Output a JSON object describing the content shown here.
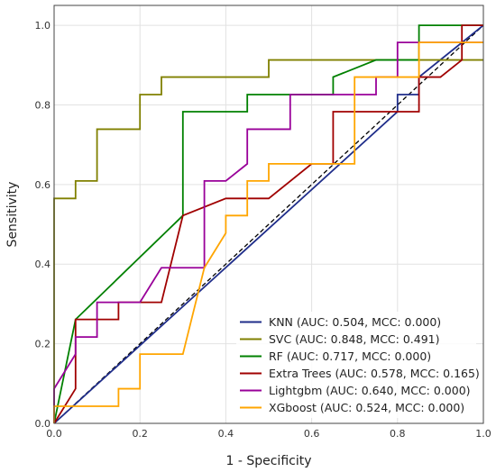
{
  "chart_data": {
    "type": "line",
    "title": "",
    "xlabel": "1 - Specificity",
    "ylabel": "Sensitivity",
    "xlim": [
      0,
      1
    ],
    "ylim": [
      0,
      1.05
    ],
    "xticks": [
      0.0,
      0.2,
      0.4,
      0.6,
      0.8,
      1.0
    ],
    "yticks": [
      0.0,
      0.2,
      0.4,
      0.6,
      0.8,
      1.0
    ],
    "xtick_labels": [
      "0.0",
      "0.2",
      "0.4",
      "0.6",
      "0.8",
      "1.0"
    ],
    "ytick_labels": [
      "0.0",
      "0.2",
      "0.4",
      "0.6",
      "0.8",
      "1.0"
    ],
    "grid": true,
    "legend_position": "bottom-right",
    "diagonal": {
      "style": "dashed",
      "color": "#000000"
    },
    "series": [
      {
        "name": "KNN (AUC: 0.504, MCC: 0.000)",
        "color": "#1f2d8a",
        "x": [
          0.0,
          0.8,
          0.8,
          0.85,
          0.85,
          1.0
        ],
        "y": [
          0.0,
          0.783,
          0.826,
          0.826,
          0.87,
          1.0
        ]
      },
      {
        "name": "SVC (AUC: 0.848, MCC: 0.491)",
        "color": "#808000",
        "x": [
          0.0,
          0.0,
          0.05,
          0.05,
          0.1,
          0.1,
          0.2,
          0.2,
          0.25,
          0.25,
          0.5,
          0.5,
          1.0
        ],
        "y": [
          0.0,
          0.565,
          0.565,
          0.609,
          0.609,
          0.739,
          0.739,
          0.826,
          0.826,
          0.87,
          0.87,
          0.913,
          0.913
        ]
      },
      {
        "name": "RF (AUC: 0.717, MCC: 0.000)",
        "color": "#008000",
        "x": [
          0.0,
          0.05,
          0.3,
          0.3,
          0.45,
          0.45,
          0.65,
          0.65,
          0.75,
          0.85,
          0.85,
          1.0
        ],
        "y": [
          0.0,
          0.261,
          0.522,
          0.783,
          0.783,
          0.826,
          0.826,
          0.87,
          0.913,
          0.913,
          1.0,
          1.0
        ]
      },
      {
        "name": "Extra Trees (AUC: 0.578, MCC: 0.165)",
        "color": "#a00000",
        "x": [
          0.0,
          0.05,
          0.05,
          0.15,
          0.15,
          0.25,
          0.3,
          0.4,
          0.5,
          0.6,
          0.65,
          0.65,
          0.85,
          0.85,
          0.9,
          0.95,
          0.95,
          1.0
        ],
        "y": [
          0.0,
          0.087,
          0.261,
          0.261,
          0.304,
          0.304,
          0.522,
          0.565,
          0.565,
          0.652,
          0.652,
          0.783,
          0.783,
          0.87,
          0.87,
          0.913,
          1.0,
          1.0
        ]
      },
      {
        "name": "Lightgbm (AUC: 0.640, MCC: 0.000)",
        "color": "#990099",
        "x": [
          0.0,
          0.0,
          0.05,
          0.05,
          0.1,
          0.1,
          0.2,
          0.25,
          0.35,
          0.35,
          0.4,
          0.45,
          0.45,
          0.55,
          0.55,
          0.75,
          0.75,
          0.8,
          0.8,
          0.85,
          0.85,
          1.0
        ],
        "y": [
          0.0,
          0.087,
          0.174,
          0.217,
          0.217,
          0.304,
          0.304,
          0.391,
          0.391,
          0.609,
          0.609,
          0.652,
          0.739,
          0.739,
          0.826,
          0.826,
          0.87,
          0.87,
          0.957,
          0.957,
          0.957,
          0.957
        ]
      },
      {
        "name": "XGboost (AUC: 0.524, MCC: 0.000)",
        "color": "#ffa500",
        "x": [
          0.0,
          0.0,
          0.15,
          0.15,
          0.2,
          0.2,
          0.3,
          0.35,
          0.4,
          0.4,
          0.45,
          0.45,
          0.5,
          0.5,
          0.7,
          0.7,
          0.85,
          0.85,
          1.0
        ],
        "y": [
          0.0,
          0.043,
          0.043,
          0.087,
          0.087,
          0.174,
          0.174,
          0.391,
          0.478,
          0.522,
          0.522,
          0.609,
          0.609,
          0.652,
          0.652,
          0.87,
          0.87,
          0.957,
          0.957
        ]
      }
    ]
  }
}
